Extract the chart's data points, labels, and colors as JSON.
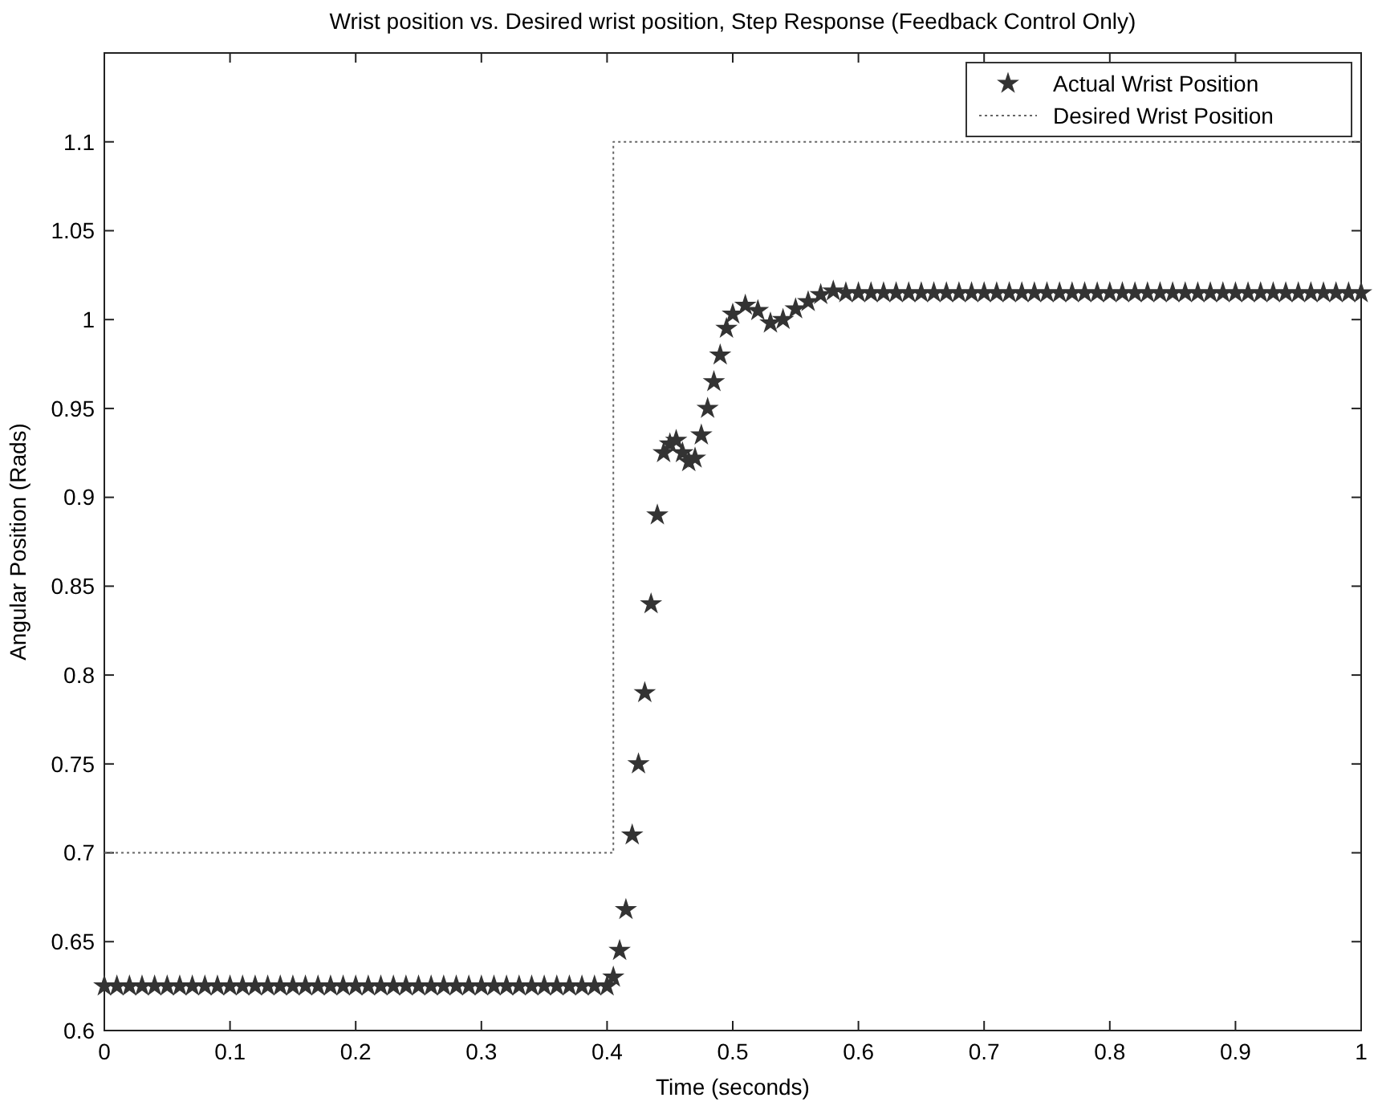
{
  "chart_data": {
    "type": "scatter",
    "title": "Wrist position vs. Desired wrist position, Step Response (Feedback Control Only)",
    "xlabel": "Time (seconds)",
    "ylabel": "Angular Position (Rads)",
    "xlim": [
      0,
      1
    ],
    "xticks": [
      0,
      0.1,
      0.2,
      0.3,
      0.4,
      0.5,
      0.6,
      0.7,
      0.8,
      0.9,
      1
    ],
    "ylim": [
      0.6,
      1.15
    ],
    "yticks": [
      0.6,
      0.65,
      0.7,
      0.75,
      0.8,
      0.85,
      0.9,
      0.95,
      1,
      1.05,
      1.1
    ],
    "legend": "top right",
    "grid": false,
    "series": [
      {
        "name": "Actual Wrist Position",
        "marker": "star",
        "color": "#333333",
        "x": [
          0,
          0.01,
          0.02,
          0.03,
          0.04,
          0.05,
          0.06,
          0.07,
          0.08,
          0.09,
          0.1,
          0.11,
          0.12,
          0.13,
          0.14,
          0.15,
          0.16,
          0.17,
          0.18,
          0.19,
          0.2,
          0.21,
          0.22,
          0.23,
          0.24,
          0.25,
          0.26,
          0.27,
          0.28,
          0.29,
          0.3,
          0.31,
          0.32,
          0.33,
          0.34,
          0.35,
          0.36,
          0.37,
          0.38,
          0.39,
          0.4,
          0.405,
          0.41,
          0.415,
          0.42,
          0.425,
          0.43,
          0.435,
          0.44,
          0.445,
          0.45,
          0.455,
          0.46,
          0.465,
          0.47,
          0.475,
          0.48,
          0.485,
          0.49,
          0.495,
          0.5,
          0.51,
          0.52,
          0.53,
          0.54,
          0.55,
          0.56,
          0.57,
          0.58,
          0.59,
          0.6,
          0.61,
          0.62,
          0.63,
          0.64,
          0.65,
          0.66,
          0.67,
          0.68,
          0.69,
          0.7,
          0.71,
          0.72,
          0.73,
          0.74,
          0.75,
          0.76,
          0.77,
          0.78,
          0.79,
          0.8,
          0.81,
          0.82,
          0.83,
          0.84,
          0.85,
          0.86,
          0.87,
          0.88,
          0.89,
          0.9,
          0.91,
          0.92,
          0.93,
          0.94,
          0.95,
          0.96,
          0.97,
          0.98,
          0.99,
          1
        ],
        "values": [
          0.625,
          0.625,
          0.625,
          0.625,
          0.625,
          0.625,
          0.625,
          0.625,
          0.625,
          0.625,
          0.625,
          0.625,
          0.625,
          0.625,
          0.625,
          0.625,
          0.625,
          0.625,
          0.625,
          0.625,
          0.625,
          0.625,
          0.625,
          0.625,
          0.625,
          0.625,
          0.625,
          0.625,
          0.625,
          0.625,
          0.625,
          0.625,
          0.625,
          0.625,
          0.625,
          0.625,
          0.625,
          0.625,
          0.625,
          0.625,
          0.625,
          0.63,
          0.645,
          0.668,
          0.71,
          0.75,
          0.79,
          0.84,
          0.89,
          0.925,
          0.93,
          0.932,
          0.925,
          0.92,
          0.922,
          0.935,
          0.95,
          0.965,
          0.98,
          0.995,
          1.003,
          1.008,
          1.005,
          0.998,
          1,
          1.006,
          1.01,
          1.014,
          1.016,
          1.015,
          1.015,
          1.015,
          1.015,
          1.015,
          1.015,
          1.015,
          1.015,
          1.015,
          1.015,
          1.015,
          1.015,
          1.015,
          1.015,
          1.015,
          1.015,
          1.015,
          1.015,
          1.015,
          1.015,
          1.015,
          1.015,
          1.015,
          1.015,
          1.015,
          1.015,
          1.015,
          1.015,
          1.015,
          1.015,
          1.015,
          1.015,
          1.015,
          1.015,
          1.015,
          1.015,
          1.015,
          1.015,
          1.015,
          1.015,
          1.015,
          1.015
        ]
      },
      {
        "name": "Desired Wrist Position",
        "type": "line",
        "line_style": "dotted",
        "marker": "none",
        "color": "#666666",
        "x": [
          0,
          0.405,
          0.405,
          1
        ],
        "values": [
          0.7,
          0.7,
          1.1,
          1.1
        ]
      }
    ]
  }
}
